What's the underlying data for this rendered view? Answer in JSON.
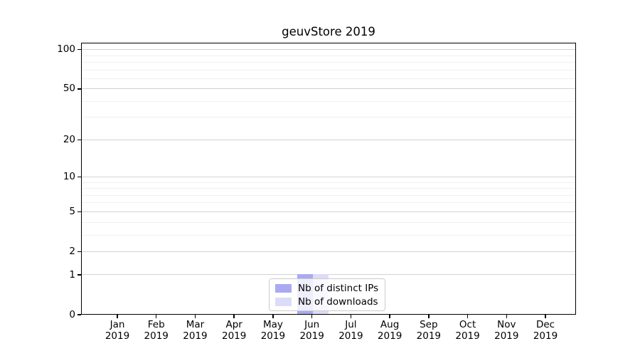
{
  "chart_data": {
    "type": "bar",
    "title": "geuvStore 2019",
    "categories": [
      "Jan",
      "Feb",
      "Mar",
      "Apr",
      "May",
      "Jun",
      "Jul",
      "Aug",
      "Sep",
      "Oct",
      "Nov",
      "Dec"
    ],
    "category_year": "2019",
    "series": [
      {
        "name": "Nb of distinct IPs",
        "color": "#aaaaf0",
        "values": [
          0,
          0,
          0,
          0,
          0,
          1,
          0,
          0,
          0,
          0,
          0,
          0
        ]
      },
      {
        "name": "Nb of downloads",
        "color": "#dcdcf8",
        "values": [
          0,
          0,
          0,
          0,
          0,
          1,
          0,
          0,
          0,
          0,
          0,
          0
        ]
      }
    ],
    "y_axis": {
      "scale": "log1p",
      "major_ticks": [
        0,
        1,
        2,
        5,
        10,
        20,
        50,
        100
      ],
      "minor_gridlines": [
        3,
        4,
        6,
        7,
        8,
        9,
        30,
        40,
        60,
        70,
        80,
        90
      ],
      "ymax": 113
    },
    "x_axis": {
      "label_lines": 2
    },
    "legend": {
      "position": "lower-center"
    },
    "colors": {
      "grid_major": "#d2d2d2",
      "grid_minor": "#f0f0f0",
      "spine": "#000000",
      "background": "#ffffff"
    },
    "grid": "on"
  }
}
